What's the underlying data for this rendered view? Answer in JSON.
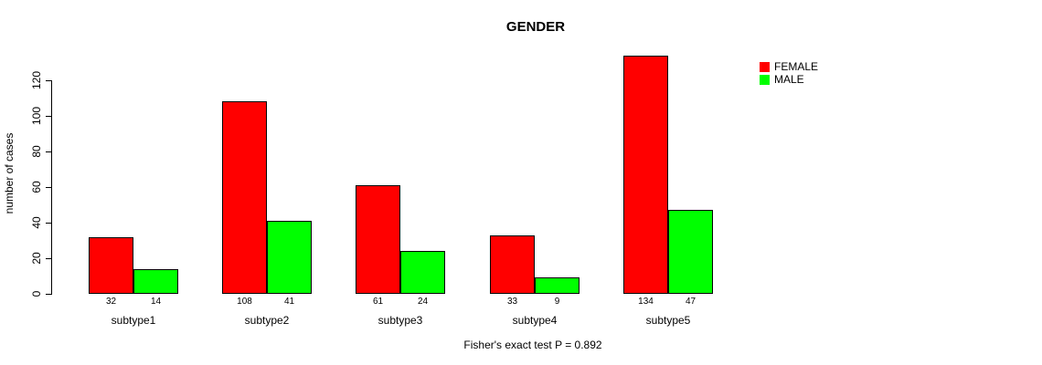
{
  "chart_data": {
    "type": "bar",
    "title": "GENDER",
    "ylabel": "number of cases",
    "xlabel": "",
    "categories": [
      "subtype1",
      "subtype2",
      "subtype3",
      "subtype4",
      "subtype5"
    ],
    "series": [
      {
        "name": "FEMALE",
        "color": "#ff0000",
        "values": [
          32,
          108,
          61,
          33,
          134
        ]
      },
      {
        "name": "MALE",
        "color": "#00ff00",
        "values": [
          14,
          41,
          24,
          9,
          47
        ]
      }
    ],
    "yticks": [
      0,
      20,
      40,
      60,
      80,
      100,
      120
    ],
    "ylim": [
      0,
      134
    ],
    "grid": false,
    "bar_borders": "#000000",
    "bar_value_labels_shown": true,
    "legend_position": "top-right",
    "annotation": "Fisher's exact test P = 0.892"
  }
}
